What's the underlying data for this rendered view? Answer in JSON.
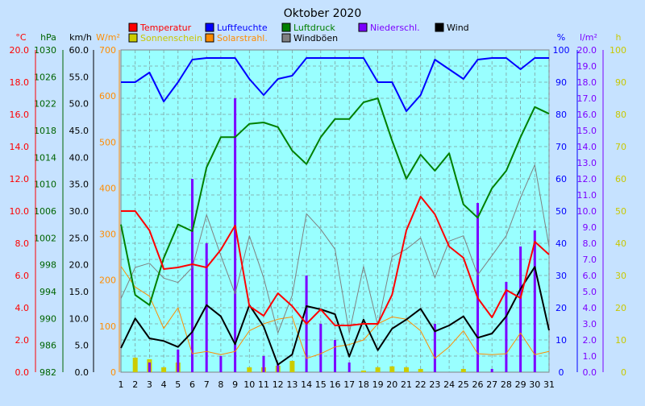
{
  "chart_data": {
    "type": "line",
    "title": "Oktober 2020",
    "x": [
      1,
      2,
      3,
      4,
      5,
      6,
      7,
      8,
      9,
      10,
      11,
      12,
      13,
      14,
      15,
      16,
      17,
      18,
      19,
      20,
      21,
      22,
      23,
      24,
      25,
      26,
      27,
      28,
      29,
      30,
      31
    ],
    "axes": {
      "temperature": {
        "unit": "°C",
        "ylim": [
          0,
          20
        ],
        "ticks": [
          "0.0",
          "2.0",
          "4.0",
          "6.0",
          "8.0",
          "10.0",
          "12.0",
          "14.0",
          "16.0",
          "18.0",
          "20.0"
        ],
        "color": "#ff0000"
      },
      "pressure": {
        "unit": "hPa",
        "ylim": [
          982,
          1030
        ],
        "ticks": [
          "982",
          "986",
          "990",
          "994",
          "998",
          "1002",
          "1006",
          "1010",
          "1014",
          "1018",
          "1022",
          "1026",
          "1030"
        ],
        "color": "#006400"
      },
      "wind": {
        "unit": "km/h",
        "ylim": [
          0,
          60
        ],
        "ticks": [
          "0.0",
          "5.0",
          "10.0",
          "15.0",
          "20.0",
          "25.0",
          "30.0",
          "35.0",
          "40.0",
          "45.0",
          "50.0",
          "55.0",
          "60.0"
        ],
        "color": "#000000"
      },
      "radiation": {
        "unit": "W/m²",
        "ylim": [
          0,
          700
        ],
        "ticks": [
          "0",
          "100",
          "200",
          "300",
          "400",
          "500",
          "600",
          "700"
        ],
        "color": "#ff8c00"
      },
      "humidity": {
        "unit": "%",
        "ylim": [
          0,
          100
        ],
        "ticks": [
          "0",
          "10",
          "20",
          "30",
          "40",
          "50",
          "60",
          "70",
          "80",
          "90",
          "100"
        ],
        "color": "#0000ff"
      },
      "precipitation": {
        "unit": "l/m²",
        "ylim": [
          0,
          20
        ],
        "ticks": [
          "0.0",
          "1.0",
          "2.0",
          "3.0",
          "4.0",
          "5.0",
          "6.0",
          "7.0",
          "8.0",
          "9.0",
          "10.0",
          "11.0",
          "12.0",
          "13.0",
          "14.0",
          "15.0",
          "16.0",
          "17.0",
          "18.0",
          "19.0",
          "20.0"
        ],
        "color": "#7b00ff"
      },
      "sunshine": {
        "unit": "h",
        "ylim": [
          0,
          100
        ],
        "ticks": [
          "0",
          "10",
          "20",
          "30",
          "40",
          "50",
          "60",
          "70",
          "80",
          "90",
          "100"
        ],
        "color": "#c8c800"
      }
    },
    "series": [
      {
        "name": "Temperatur",
        "axis": "temperature",
        "kind": "line",
        "color": "#ff0000",
        "values": [
          10.0,
          10.0,
          8.8,
          6.4,
          6.5,
          6.7,
          6.5,
          7.6,
          9.1,
          4.1,
          3.5,
          4.9,
          4.1,
          3.0,
          3.9,
          2.9,
          2.9,
          3.0,
          3.0,
          4.8,
          8.8,
          10.9,
          9.8,
          7.8,
          7.1,
          4.6,
          3.4,
          5.1,
          4.6,
          8.1,
          7.3
        ]
      },
      {
        "name": "Luftfeuchte",
        "axis": "humidity",
        "kind": "line",
        "color": "#0000ff",
        "values": [
          90,
          90,
          93,
          84,
          90,
          97,
          97.5,
          97.5,
          97.5,
          91,
          86,
          91,
          92,
          97.5,
          97.5,
          97.5,
          97.5,
          97.5,
          90,
          90,
          81,
          86,
          97,
          94,
          91,
          97,
          97.5,
          97.5,
          94,
          97.5,
          97.5
        ]
      },
      {
        "name": "Luftdruck",
        "axis": "pressure",
        "kind": "line",
        "color": "#008000",
        "values": [
          1004,
          993.5,
          992,
          999,
          1004,
          1003,
          1012.5,
          1017,
          1017,
          1019,
          1019.2,
          1018.5,
          1015,
          1013,
          1017,
          1019.7,
          1019.7,
          1022.2,
          1022.8,
          1016.5,
          1010.8,
          1014.4,
          1012,
          1014.6,
          1007,
          1005,
          1009.4,
          1012,
          1017,
          1021.5,
          1020.5
        ]
      },
      {
        "name": "Wind",
        "axis": "wind",
        "kind": "line",
        "color": "#000000",
        "values": [
          4.5,
          10,
          6.3,
          5.8,
          4.7,
          7.5,
          12.5,
          10.4,
          5.2,
          12.5,
          8.5,
          1.4,
          3.3,
          12.3,
          11.7,
          10.8,
          2.9,
          9.8,
          4.1,
          8.1,
          9.8,
          11.8,
          7.6,
          8.7,
          10.4,
          6.4,
          7.2,
          10.4,
          15.5,
          19.6,
          7.8
        ]
      },
      {
        "name": "Windböen",
        "axis": "wind",
        "kind": "line",
        "color": "#808080",
        "values": [
          13.7,
          19.5,
          20.3,
          17.5,
          16.7,
          19.5,
          29.3,
          21.7,
          14.6,
          25.4,
          17.6,
          7.3,
          14.3,
          29.5,
          26.6,
          22.9,
          7.3,
          19.7,
          8.7,
          21.5,
          22.9,
          25,
          17.6,
          24.4,
          25.4,
          18.1,
          21.7,
          25.4,
          32.5,
          38.6,
          23.4
        ]
      },
      {
        "name": "Solarstrahl.",
        "axis": "radiation",
        "kind": "line",
        "color": "#ff8c00",
        "values": [
          230,
          185,
          165,
          95,
          140,
          40,
          45,
          38,
          45,
          90,
          105,
          115,
          120,
          30,
          40,
          55,
          60,
          70,
          105,
          120,
          115,
          90,
          30,
          55,
          90,
          40,
          38,
          40,
          85,
          38,
          45
        ]
      },
      {
        "name": "Niederschl.",
        "axis": "precipitation",
        "kind": "bar",
        "color": "#7b00ff",
        "values": [
          0,
          0,
          0.6,
          0,
          1.4,
          12,
          8,
          1,
          17,
          0,
          1,
          0.5,
          0,
          6,
          3,
          2,
          0.6,
          0,
          0,
          0,
          0,
          0,
          3,
          0,
          0,
          10.5,
          0.2,
          5.6,
          7.8,
          8.8,
          0
        ]
      },
      {
        "name": "Sonnenschein",
        "axis": "sunshine",
        "kind": "bar",
        "color": "#cccc00",
        "values": [
          0,
          4.5,
          4,
          1.5,
          3,
          0,
          0,
          0,
          0,
          1.5,
          1.5,
          2,
          3.5,
          0,
          0,
          0,
          0,
          0.5,
          1.5,
          1.8,
          1.5,
          1,
          0,
          0,
          1,
          0,
          0,
          0,
          0,
          0,
          0
        ]
      }
    ],
    "grid": true,
    "legend": "top"
  }
}
